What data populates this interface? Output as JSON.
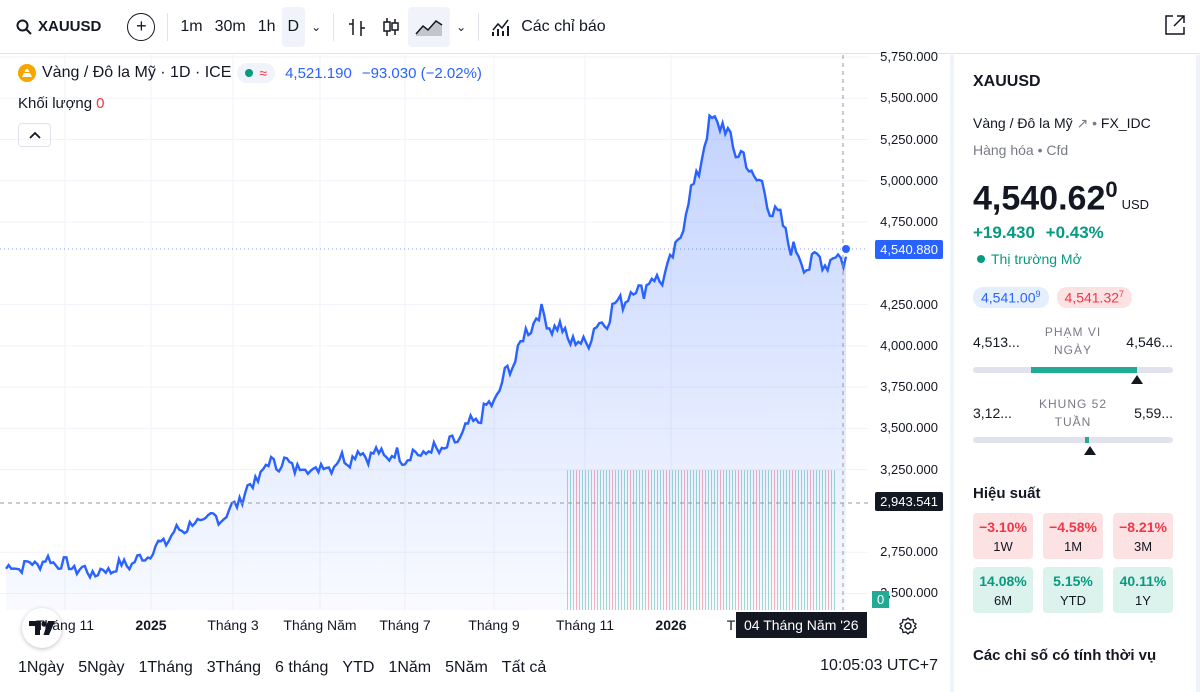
{
  "toolbar": {
    "symbol": "XAUUSD",
    "intervals": [
      "1m",
      "30m",
      "1h",
      "D"
    ],
    "active_interval": "D",
    "indicators_label": "Các chỉ báo"
  },
  "legend": {
    "title": "Vàng / Đô la Mỹ · 1D · ICE",
    "last_price": "4,521.190",
    "change": "−93.030 (−2.02%)",
    "volume_label": "Khối lượng",
    "volume_value": "0"
  },
  "yaxis": {
    "ticks": [
      "5,750.000",
      "5,500.000",
      "5,250.000",
      "5,000.000",
      "4,750.000",
      "4,250.000",
      "4,000.000",
      "3,750.000",
      "3,500.000",
      "3,250.000",
      "2,750.000",
      "2,500.000"
    ],
    "current_price_tag": "4,540.880",
    "crosshair_price_tag": "2,943.541"
  },
  "xaxis": {
    "labels": [
      "Tháng 11",
      "2025",
      "Tháng 3",
      "Tháng Năm",
      "Tháng 7",
      "Tháng 9",
      "Tháng 11",
      "2026",
      "T"
    ],
    "crosshair_date": "04 Tháng Năm '26",
    "volume_zero_tag": "0"
  },
  "chart_data": {
    "type": "area",
    "x": [
      "2024-10",
      "2024-11",
      "2024-12",
      "2025-01",
      "2025-02",
      "2025-03",
      "2025-04",
      "2025-05",
      "2025-06",
      "2025-07",
      "2025-08",
      "2025-09",
      "2025-10",
      "2025-11",
      "2025-12",
      "2026-01",
      "2026-02",
      "2026-03",
      "2026-04",
      "2026-05"
    ],
    "values": [
      2650,
      2700,
      2620,
      2700,
      2900,
      2980,
      3300,
      3250,
      3350,
      3330,
      3380,
      3650,
      4200,
      4000,
      4300,
      4450,
      5400,
      5000,
      4500,
      4540
    ],
    "ylim": [
      2400,
      5750
    ],
    "grid": true
  },
  "bottombar": {
    "ranges": [
      "1Ngày",
      "5Ngày",
      "1Tháng",
      "3Tháng",
      "6 tháng",
      "YTD",
      "1Năm",
      "5Năm",
      "Tất cả"
    ],
    "clock": "10:05:03 UTC+7"
  },
  "panel": {
    "title": "XAUUSD",
    "name": "Vàng / Đô la Mỹ",
    "exchange": "FX_IDC",
    "category": "Hàng hóa",
    "type": "Cfd",
    "price_main": "4,540.62",
    "price_super": "0",
    "currency": "USD",
    "change": "+19.430",
    "change_pct": "+0.43%",
    "market_status": "Thị trường Mở",
    "bid": "4,541.00",
    "bid_super": "9",
    "ask": "4,541.32",
    "ask_super": "7",
    "day_range": {
      "low": "4,513...",
      "high": "4,546...",
      "label": "PHẠM VI NGÀY"
    },
    "week52_range": {
      "low": "3,12...",
      "high": "5,59...",
      "label": "KHUNG 52 TUẦN"
    },
    "performance_title": "Hiệu suất",
    "performance": [
      {
        "value": "−3.10%",
        "label": "1W"
      },
      {
        "value": "−4.58%",
        "label": "1M"
      },
      {
        "value": "−8.21%",
        "label": "3M"
      },
      {
        "value": "14.08%",
        "label": "6M"
      },
      {
        "value": "5.15%",
        "label": "YTD"
      },
      {
        "value": "40.11%",
        "label": "1Y"
      }
    ],
    "seasonal_title": "Các chỉ số có tính thời vụ"
  }
}
